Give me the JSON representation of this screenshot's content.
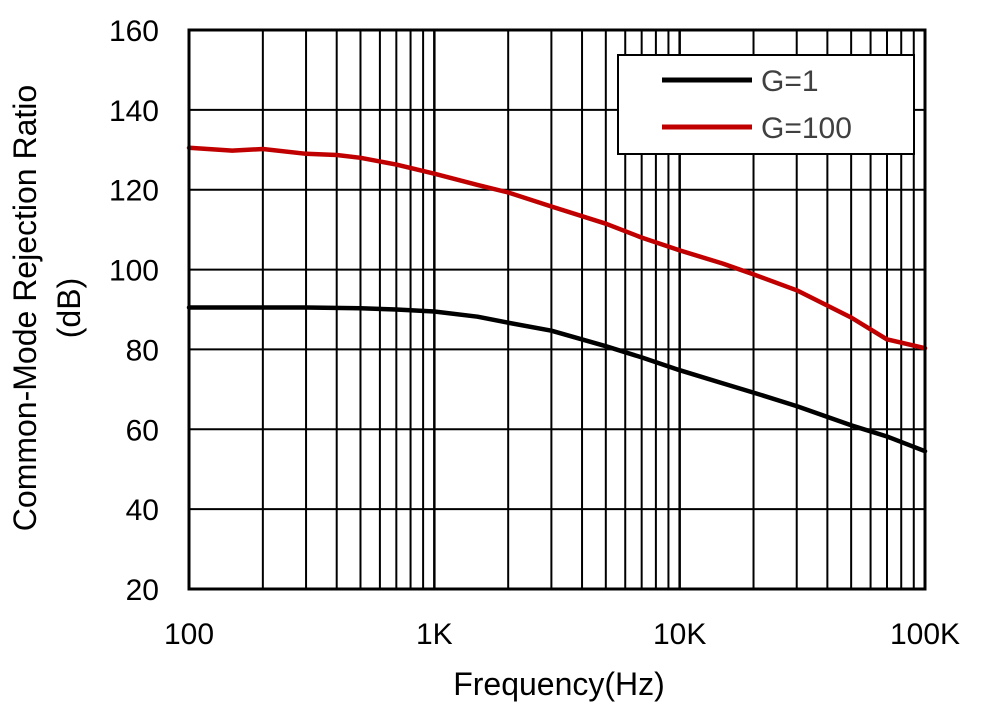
{
  "chart_data": {
    "type": "line",
    "xscale": "log",
    "xlim": [
      100,
      100000
    ],
    "ylim": [
      20,
      160
    ],
    "xlabel": "Frequency(Hz)",
    "ylabel_line1": "Common-Mode Rejection Ratio",
    "ylabel_line2": "(dB)",
    "x_ticks": [
      100,
      1000,
      10000,
      100000
    ],
    "x_tick_labels": [
      "100",
      "1K",
      "10K",
      "100K"
    ],
    "y_ticks": [
      20,
      40,
      60,
      80,
      100,
      120,
      140,
      160
    ],
    "y_tick_labels": [
      "20",
      "40",
      "60",
      "80",
      "100",
      "120",
      "140",
      "160"
    ],
    "grid": true,
    "legend_position": "top-right",
    "series": [
      {
        "name": "G=1",
        "color": "#000000",
        "x": [
          100,
          200,
          300,
          500,
          700,
          1000,
          1500,
          2000,
          3000,
          5000,
          7000,
          10000,
          15000,
          20000,
          30000,
          50000,
          70000,
          100000
        ],
        "y": [
          90.5,
          90.5,
          90.5,
          90.3,
          90.0,
          89.5,
          88.2,
          86.7,
          84.7,
          80.8,
          78.0,
          74.8,
          71.5,
          69.2,
          65.8,
          61.0,
          58.2,
          54.5
        ]
      },
      {
        "name": "G=100",
        "color": "#c00000",
        "x": [
          100,
          150,
          200,
          300,
          400,
          500,
          700,
          1000,
          1500,
          2000,
          3000,
          5000,
          7000,
          10000,
          15000,
          20000,
          30000,
          50000,
          70000,
          100000
        ],
        "y": [
          130.5,
          129.8,
          130.2,
          129.0,
          128.7,
          128.0,
          126.3,
          124.0,
          121.2,
          119.3,
          115.8,
          111.5,
          108.0,
          104.8,
          101.5,
          98.8,
          94.8,
          88.0,
          82.5,
          80.3
        ]
      }
    ]
  }
}
